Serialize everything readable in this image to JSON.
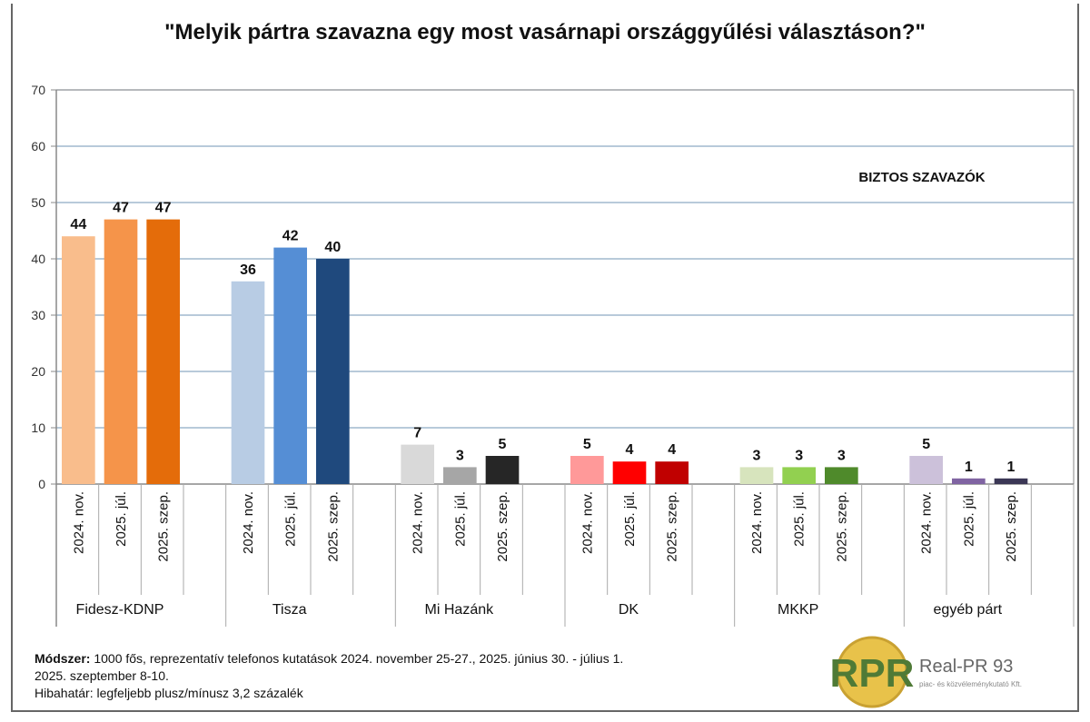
{
  "chart_data": {
    "type": "bar",
    "title": "\"Melyik pártra szavazna egy most vasárnapi országgyűlési választáson?\"",
    "annotation": "BIZTOS SZAVAZÓK",
    "ylim": [
      0,
      70
    ],
    "yticks": [
      "0",
      "10",
      "20",
      "30",
      "40",
      "50",
      "60",
      "70"
    ],
    "grid": true,
    "periods": [
      "2024. nov.",
      "2025. júl.",
      "2025. szep."
    ],
    "groups": [
      {
        "name": "Fidesz-KDNP",
        "values": [
          44,
          47,
          47
        ],
        "colors": [
          "#f9bd8c",
          "#f5944a",
          "#e46c0a"
        ]
      },
      {
        "name": "Tisza",
        "values": [
          36,
          42,
          40
        ],
        "colors": [
          "#b8cce4",
          "#558ed5",
          "#1f497d"
        ]
      },
      {
        "name": "Mi Hazánk",
        "values": [
          7,
          3,
          5
        ],
        "colors": [
          "#d9d9d9",
          "#a6a6a6",
          "#262626"
        ]
      },
      {
        "name": "DK",
        "values": [
          5,
          4,
          4
        ],
        "colors": [
          "#ff9999",
          "#ff0000",
          "#c00000"
        ]
      },
      {
        "name": "MKKP",
        "values": [
          3,
          3,
          3
        ],
        "colors": [
          "#d7e4bd",
          "#92d050",
          "#4f8a2b"
        ]
      },
      {
        "name": "egyéb párt",
        "values": [
          5,
          1,
          1
        ],
        "colors": [
          "#ccc1da",
          "#8064a2",
          "#3b3755"
        ]
      }
    ]
  },
  "footer": {
    "method_label": "Módszer:",
    "method_text": " 1000 fős, reprezentatív telefonos kutatások 2024. november 25-27., 2025. június 30. - július 1.",
    "method_text2": "2025. szeptember  8-10.",
    "margin": "Hibahatár:  legfeljebb plusz/mínusz  3,2 százalék"
  },
  "logo": {
    "mark": "RPR",
    "name": "Real-PR 93",
    "sub": "piac- és közvéleménykutató Kft."
  }
}
